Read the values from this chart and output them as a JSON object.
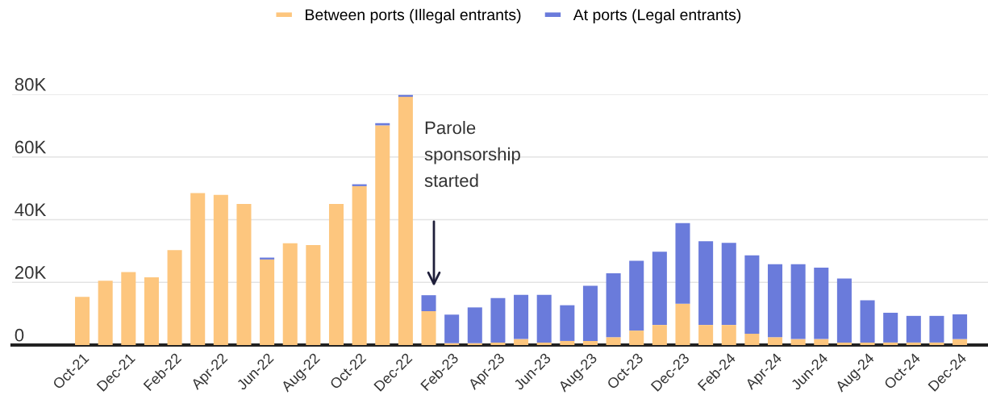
{
  "chart_data": {
    "type": "bar",
    "stacked": true,
    "categories": [
      "Oct-21",
      null,
      "Dec-21",
      null,
      "Feb-22",
      null,
      "Apr-22",
      null,
      "Jun-22",
      null,
      "Aug-22",
      null,
      "Oct-22",
      null,
      "Dec-22",
      null,
      "Feb-23",
      null,
      "Apr-23",
      null,
      "Jun-23",
      null,
      "Aug-23",
      null,
      "Oct-23",
      null,
      "Dec-23",
      null,
      "Feb-24",
      null,
      "Apr-24",
      null,
      "Jun-24",
      null,
      "Aug-24",
      null,
      "Oct-24",
      null,
      "Dec-24"
    ],
    "series": [
      {
        "name": "Between ports (Illegal entrants)",
        "color": "#fdc67e",
        "values": [
          15400,
          20500,
          23300,
          21600,
          30300,
          48500,
          47900,
          45000,
          27300,
          32500,
          31900,
          45000,
          50700,
          70100,
          79200,
          10800,
          600,
          600,
          800,
          1900,
          800,
          1300,
          1300,
          2500,
          4600,
          6400,
          13200,
          6400,
          6400,
          3600,
          2500,
          1900,
          1900,
          800,
          800,
          800,
          800,
          800,
          1900
        ]
      },
      {
        "name": "At ports (Legal entrants)",
        "color": "#6a7bdb",
        "values": [
          0,
          0,
          0,
          0,
          0,
          0,
          0,
          0,
          600,
          0,
          0,
          0,
          600,
          700,
          600,
          5100,
          9100,
          11400,
          14200,
          14100,
          15200,
          11400,
          17600,
          20400,
          22300,
          23400,
          25700,
          26700,
          26200,
          25000,
          23300,
          23900,
          22800,
          20400,
          13500,
          9500,
          8500,
          8500,
          7900
        ]
      }
    ],
    "ylim": [
      0,
      80000
    ],
    "yticks": [
      {
        "value": 0,
        "label": "0"
      },
      {
        "value": 20000,
        "label": "20K"
      },
      {
        "value": 40000,
        "label": "40K"
      },
      {
        "value": 60000,
        "label": "60K"
      },
      {
        "value": 80000,
        "label": "80K"
      }
    ],
    "grid": "y",
    "legend": "top",
    "annotations": [
      "Parole\nsponsorship\nstarted"
    ]
  }
}
